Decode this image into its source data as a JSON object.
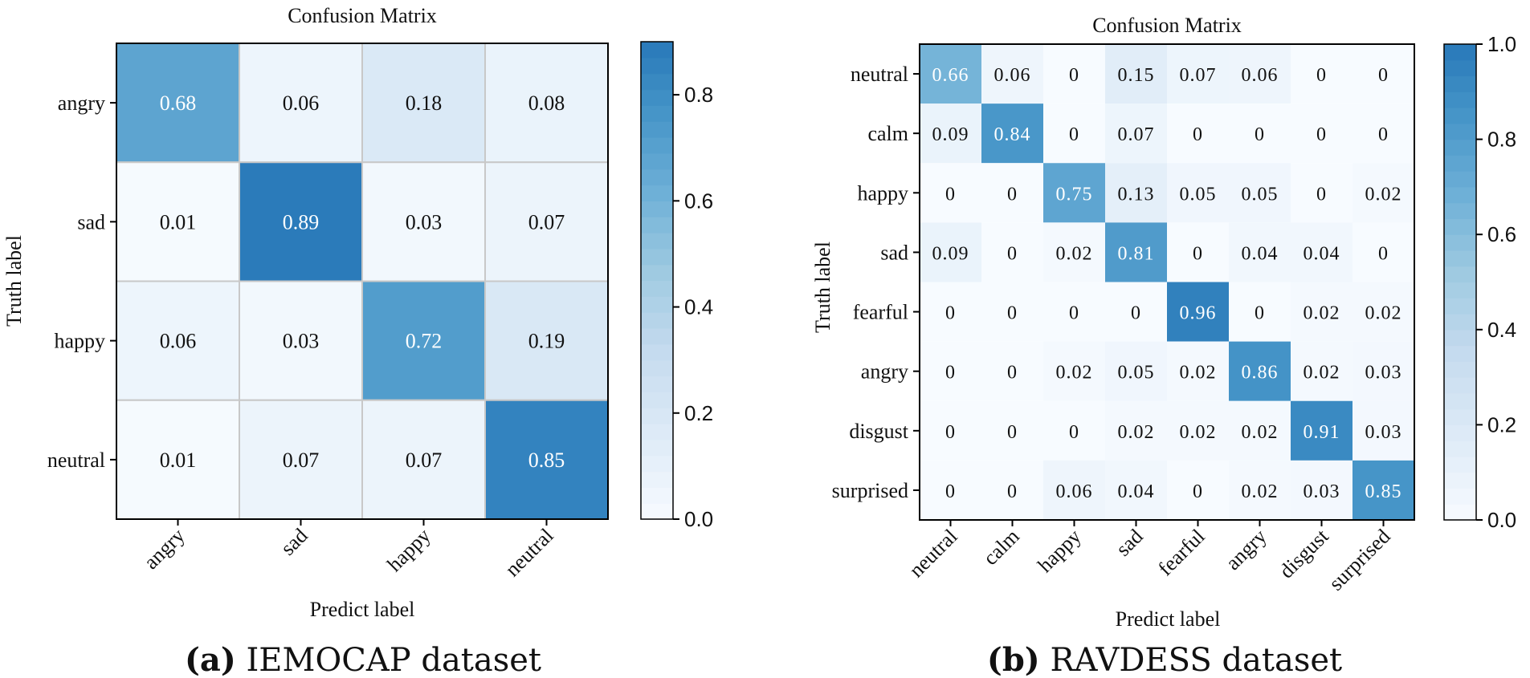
{
  "chart_data": [
    {
      "type": "heatmap",
      "title": "Confusion Matrix",
      "xlabel": "Predict label",
      "ylabel": "Truth label",
      "x_categories": [
        "angry",
        "sad",
        "happy",
        "neutral"
      ],
      "y_categories": [
        "angry",
        "sad",
        "happy",
        "neutral"
      ],
      "values": [
        [
          0.68,
          0.06,
          0.18,
          0.08
        ],
        [
          0.01,
          0.89,
          0.03,
          0.07
        ],
        [
          0.06,
          0.03,
          0.72,
          0.19
        ],
        [
          0.01,
          0.07,
          0.07,
          0.85
        ]
      ],
      "colorbar": {
        "range": [
          0,
          0.9
        ],
        "ticks": [
          "0.0",
          "0.2",
          "0.4",
          "0.6",
          "0.8"
        ],
        "cmap": "Blues"
      },
      "grid": true,
      "caption_label": "(a)",
      "caption_text": "IEMOCAP dataset"
    },
    {
      "type": "heatmap",
      "title": "Confusion Matrix",
      "xlabel": "Predict label",
      "ylabel": "Truth label",
      "x_categories": [
        "neutral",
        "calm",
        "happy",
        "sad",
        "fearful",
        "angry",
        "disgust",
        "surprised"
      ],
      "y_categories": [
        "neutral",
        "calm",
        "happy",
        "sad",
        "fearful",
        "angry",
        "disgust",
        "surprised"
      ],
      "values": [
        [
          0.66,
          0.06,
          0,
          0.15,
          0.07,
          0.06,
          0,
          0
        ],
        [
          0.09,
          0.84,
          0,
          0.07,
          0,
          0,
          0,
          0
        ],
        [
          0,
          0,
          0.75,
          0.13,
          0.05,
          0.05,
          0,
          0.02
        ],
        [
          0.09,
          0,
          0.02,
          0.81,
          0,
          0.04,
          0.04,
          0
        ],
        [
          0,
          0,
          0,
          0,
          0.96,
          0,
          0.02,
          0.02
        ],
        [
          0,
          0,
          0.02,
          0.05,
          0.02,
          0.86,
          0.02,
          0.03
        ],
        [
          0,
          0,
          0,
          0.02,
          0.02,
          0.02,
          0.91,
          0.03
        ],
        [
          0,
          0,
          0.06,
          0.04,
          0,
          0.02,
          0.03,
          0.85
        ]
      ],
      "colorbar": {
        "range": [
          0,
          1.0
        ],
        "ticks": [
          "0.0",
          "0.2",
          "0.4",
          "0.6",
          "0.8",
          "1.0"
        ],
        "cmap": "Blues"
      },
      "grid": false,
      "caption_label": "(b)",
      "caption_text": "RAVDESS dataset"
    }
  ]
}
